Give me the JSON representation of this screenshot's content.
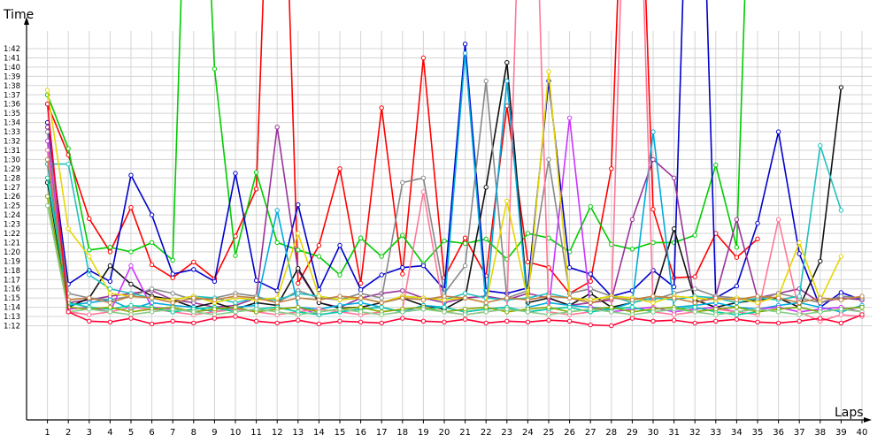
{
  "chart_data": {
    "type": "line",
    "xlabel": "Laps",
    "ylabel": "Time",
    "xlim": [
      0,
      40
    ],
    "ylim_seconds": [
      68,
      105
    ],
    "grid": true,
    "legend": "none",
    "x_ticks": [
      "1",
      "2",
      "3",
      "4",
      "5",
      "6",
      "7",
      "8",
      "9",
      "10",
      "11",
      "12",
      "13",
      "14",
      "15",
      "16",
      "17",
      "18",
      "19",
      "20",
      "21",
      "22",
      "23",
      "24",
      "25",
      "26",
      "27",
      "28",
      "29",
      "30",
      "31",
      "32",
      "33",
      "34",
      "35",
      "36",
      "37",
      "38",
      "39",
      "40"
    ],
    "y_ticks": [
      "1:12",
      "1:13",
      "1:14",
      "1:15",
      "1:16",
      "1:17",
      "1:18",
      "1:19",
      "1:20",
      "1:21",
      "1:22",
      "1:23",
      "1:24",
      "1:25",
      "1:26",
      "1:27",
      "1:28",
      "1:29",
      "1:30",
      "1:31",
      "1:32",
      "1:33",
      "1:34",
      "1:35",
      "1:36",
      "1:37",
      "1:38",
      "1:39",
      "1:40",
      "1:41",
      "1:42"
    ],
    "x": [
      1,
      2,
      3,
      4,
      5,
      6,
      7,
      8,
      9,
      10,
      11,
      12,
      13,
      14,
      15,
      16,
      17,
      18,
      19,
      20,
      21,
      22,
      23,
      24,
      25,
      26,
      27,
      28,
      29,
      30,
      31,
      32,
      33,
      34,
      35,
      36,
      37,
      38,
      39,
      40
    ],
    "series": [
      {
        "color": "#ff0000",
        "values": [
          96.0,
          90.5,
          83.6,
          80.0,
          84.8,
          78.6,
          77.2,
          78.9,
          77.1,
          81.7,
          86.8,
          150,
          76.6,
          80.7,
          89.0,
          76.6,
          95.6,
          77.6,
          101.0,
          77.2,
          81.5,
          77.4,
          95.8,
          78.9,
          78.3,
          75.5,
          76.8,
          89.0,
          150,
          84.6,
          77.2,
          77.3,
          82.0,
          79.4,
          81.4,
          null,
          null,
          null,
          null,
          null
        ]
      },
      {
        "color": "#00cc00",
        "values": [
          97.0,
          91.2,
          80.2,
          80.5,
          80.0,
          81.0,
          79.1,
          150,
          99.8,
          79.6,
          88.6,
          81.0,
          80.2,
          79.5,
          77.5,
          81.5,
          79.5,
          81.8,
          78.7,
          81.2,
          80.9,
          81.4,
          79.2,
          82.0,
          81.5,
          80.0,
          84.9,
          80.8,
          80.3,
          81.0,
          81.0,
          81.8,
          89.4,
          80.5,
          150,
          null,
          null,
          null,
          null,
          null
        ]
      },
      {
        "color": "#0000cc",
        "values": [
          94.0,
          76.5,
          78.0,
          76.8,
          88.3,
          84.0,
          77.6,
          78.1,
          76.8,
          88.5,
          76.9,
          75.8,
          85.1,
          75.9,
          80.7,
          75.9,
          77.5,
          78.3,
          78.5,
          75.9,
          102.5,
          75.8,
          75.5,
          76.1,
          98.5,
          78.3,
          77.6,
          75.2,
          75.8,
          78.0,
          76.2,
          150,
          75.0,
          76.3,
          83.1,
          93.0,
          79.8,
          74.0,
          75.6,
          74.8
        ]
      },
      {
        "color": "#993399",
        "values": [
          93.5,
          74.5,
          74.8,
          75.2,
          75.5,
          75.8,
          74.8,
          74.5,
          74.0,
          74.2,
          75.0,
          93.5,
          78.0,
          74.5,
          74.0,
          75.0,
          75.5,
          75.8,
          75.0,
          74.5,
          75.0,
          75.2,
          74.8,
          75.5,
          75.0,
          74.2,
          74.5,
          74.8,
          83.5,
          90.0,
          88.0,
          74.5,
          75.2,
          83.5,
          75.0,
          75.5,
          76.0,
          74.5,
          75.0,
          74.8
        ]
      },
      {
        "color": "#111111",
        "values": [
          87.5,
          74.0,
          75.0,
          78.5,
          76.5,
          75.2,
          74.8,
          74.0,
          74.5,
          73.8,
          74.5,
          74.2,
          78.2,
          74.5,
          73.9,
          74.0,
          74.5,
          75.0,
          74.2,
          73.8,
          75.0,
          87.0,
          100.5,
          74.5,
          75.0,
          74.2,
          75.5,
          74.0,
          74.5,
          75.0,
          82.5,
          74.8,
          74.0,
          74.5,
          74.8,
          75.0,
          74.0,
          79.0,
          97.8,
          null
        ]
      },
      {
        "color": "#888888",
        "values": [
          93.0,
          75.5,
          75.0,
          74.8,
          75.2,
          76.0,
          75.5,
          74.8,
          75.0,
          75.5,
          75.2,
          74.5,
          75.8,
          75.0,
          74.8,
          75.5,
          75.0,
          87.5,
          88.0,
          75.5,
          78.5,
          98.5,
          75.0,
          75.8,
          90.0,
          75.5,
          76.0,
          75.2,
          75.0,
          74.8,
          75.5,
          76.0,
          75.2,
          75.0,
          74.8,
          75.5,
          75.0,
          74.5,
          75.2,
          75.0
        ]
      },
      {
        "color": "#00aadd",
        "values": [
          89.5,
          74.2,
          74.5,
          74.8,
          73.8,
          74.5,
          74.2,
          74.0,
          73.5,
          74.0,
          74.2,
          84.5,
          74.0,
          73.8,
          74.2,
          74.5,
          74.0,
          73.5,
          74.2,
          74.0,
          101.5,
          74.2,
          98.5,
          74.0,
          74.5,
          74.2,
          74.0,
          73.8,
          74.5,
          93.0,
          74.0,
          74.2,
          74.5,
          74.0,
          73.8,
          74.2,
          74.5,
          74.0,
          73.5,
          74.2
        ]
      },
      {
        "color": "#20c0c0",
        "values": [
          89.5,
          89.5,
          77.5,
          76.0,
          75.5,
          75.0,
          74.8,
          75.2,
          75.0,
          74.5,
          75.0,
          74.8,
          75.5,
          75.2,
          74.8,
          75.0,
          74.5,
          75.2,
          75.0,
          74.8,
          75.5,
          75.0,
          74.8,
          75.0,
          75.5,
          75.0,
          74.8,
          75.2,
          74.5,
          75.0,
          74.8,
          75.2,
          75.0,
          74.5,
          75.0,
          74.8,
          75.2,
          91.5,
          84.5,
          null
        ]
      },
      {
        "color": "#cc33ff",
        "values": [
          92.0,
          73.8,
          74.0,
          73.5,
          78.5,
          74.0,
          73.8,
          73.5,
          73.8,
          74.0,
          73.5,
          73.8,
          74.0,
          73.2,
          73.5,
          73.8,
          74.0,
          73.5,
          73.8,
          74.0,
          73.5,
          73.8,
          74.0,
          73.5,
          73.8,
          94.5,
          74.0,
          73.5,
          73.8,
          74.0,
          73.5,
          73.8,
          74.0,
          73.5,
          73.8,
          74.0,
          73.5,
          73.8,
          74.0,
          73.5
        ]
      },
      {
        "color": "#ff7799",
        "values": [
          91.0,
          73.5,
          73.2,
          73.5,
          74.0,
          73.8,
          73.5,
          73.2,
          73.5,
          73.8,
          73.5,
          73.2,
          73.5,
          73.8,
          73.5,
          73.2,
          73.5,
          73.8,
          86.5,
          73.5,
          73.2,
          73.5,
          73.8,
          150,
          73.5,
          73.2,
          73.5,
          73.8,
          150,
          73.5,
          73.2,
          73.5,
          73.8,
          73.5,
          73.2,
          83.5,
          73.5,
          72.5,
          73.2,
          73.0
        ]
      },
      {
        "color": "#e6d600",
        "values": [
          97.5,
          82.5,
          79.5,
          75.5,
          75.2,
          75.0,
          74.8,
          75.2,
          74.5,
          75.0,
          74.8,
          75.0,
          82.0,
          75.2,
          74.8,
          75.0,
          74.5,
          75.2,
          75.0,
          74.8,
          75.0,
          74.5,
          85.5,
          74.8,
          99.5,
          75.0,
          74.8,
          75.2,
          75.0,
          74.5,
          75.2,
          75.0,
          74.8,
          75.0,
          74.5,
          75.2,
          81.0,
          74.8,
          79.5,
          null
        ]
      },
      {
        "color": "#00d0a0",
        "values": [
          88.0,
          74.5,
          74.0,
          73.8,
          74.2,
          74.0,
          73.5,
          73.8,
          74.0,
          73.5,
          73.8,
          74.0,
          73.5,
          73.2,
          73.5,
          73.8,
          74.0,
          73.5,
          73.8,
          74.0,
          73.5,
          73.8,
          74.0,
          73.5,
          73.8,
          74.0,
          73.5,
          73.8,
          74.0,
          73.5,
          73.8,
          74.0,
          73.5,
          73.2,
          73.5,
          73.8,
          74.0,
          73.5,
          73.8,
          74.0
        ]
      },
      {
        "color": "#88aa00",
        "values": [
          86.0,
          74.0,
          73.8,
          74.0,
          73.5,
          73.8,
          74.0,
          73.5,
          73.8,
          74.0,
          73.5,
          73.8,
          74.0,
          73.5,
          73.8,
          74.0,
          73.5,
          73.8,
          74.0,
          73.5,
          73.8,
          74.0,
          73.5,
          73.8,
          74.0,
          73.5,
          73.8,
          74.0,
          73.5,
          73.8,
          74.0,
          73.5,
          73.8,
          74.0,
          73.5,
          73.8,
          74.0,
          73.5,
          73.8,
          74.0
        ]
      },
      {
        "color": "#c08040",
        "values": [
          90.0,
          74.8,
          75.0,
          74.5,
          75.2,
          75.0,
          74.5,
          75.0,
          74.8,
          75.2,
          75.0,
          74.5,
          75.0,
          74.8,
          75.2,
          75.0,
          74.5,
          75.0,
          74.8,
          75.2,
          75.0,
          74.5,
          75.0,
          74.8,
          75.2,
          75.0,
          74.5,
          75.0,
          74.8,
          75.2,
          75.0,
          74.5,
          75.0,
          74.8,
          75.2,
          75.0,
          74.5,
          75.0,
          74.8,
          75.2
        ]
      },
      {
        "color": "#88cc88",
        "values": [
          85.0,
          73.5,
          73.8,
          73.5,
          73.2,
          73.5,
          73.8,
          73.5,
          73.2,
          73.5,
          73.8,
          73.5,
          73.2,
          73.5,
          73.8,
          73.5,
          73.2,
          73.5,
          73.8,
          73.5,
          73.2,
          73.5,
          73.8,
          73.5,
          73.2,
          73.5,
          73.8,
          73.5,
          73.2,
          73.5,
          73.8,
          73.5,
          73.2,
          73.5,
          73.8,
          73.5,
          73.2,
          73.5,
          73.8,
          73.5
        ]
      },
      {
        "color": "#ff0033",
        "values": [
          96.0,
          73.5,
          72.5,
          72.4,
          72.8,
          72.2,
          72.5,
          72.3,
          72.8,
          73.0,
          72.5,
          72.3,
          72.6,
          72.2,
          72.5,
          72.4,
          72.3,
          72.8,
          72.5,
          72.4,
          72.7,
          72.3,
          72.5,
          72.4,
          72.6,
          72.5,
          72.1,
          72.0,
          72.8,
          72.5,
          72.6,
          72.3,
          72.5,
          72.7,
          72.4,
          72.3,
          72.5,
          72.8,
          72.3,
          73.2
        ]
      }
    ]
  }
}
